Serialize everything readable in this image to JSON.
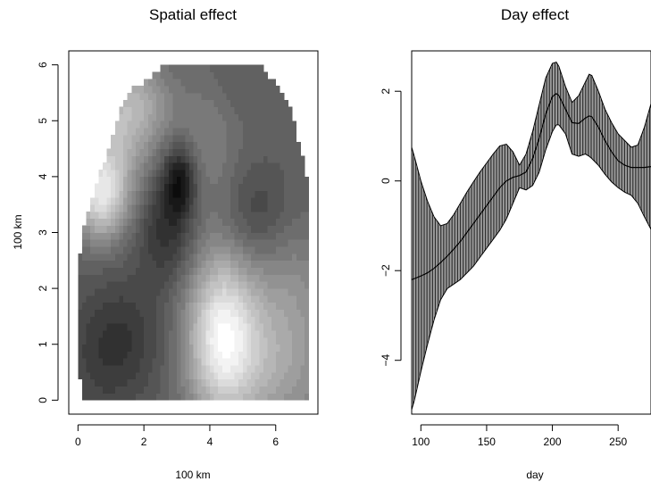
{
  "chart_data": [
    {
      "type": "heatmap",
      "title": "Spatial effect",
      "xlabel": "100 km",
      "ylabel": "100 km",
      "xlim": [
        -0.28,
        7.28
      ],
      "ylim": [
        -0.25,
        6.25
      ],
      "xticks": [
        0,
        2,
        4,
        6
      ],
      "yticks": [
        0,
        1,
        2,
        3,
        4,
        5,
        6
      ],
      "grid": false,
      "colormap": "grayscale",
      "value_range": [
        0,
        1
      ],
      "grid_x0": 0.0,
      "grid_y0": 0.0,
      "cell_size": 0.125,
      "grid_cols": 58,
      "grid_rows": 50,
      "domain_rows": [
        {
          "y": 0.0,
          "x_from": 0.2,
          "x_to": 7.0
        },
        {
          "y": 0.5,
          "x_from": 0.0,
          "x_to": 7.0
        },
        {
          "y": 1.0,
          "x_from": 0.0,
          "x_to": 7.0
        },
        {
          "y": 1.5,
          "x_from": 0.0,
          "x_to": 7.0
        },
        {
          "y": 2.0,
          "x_from": 0.0,
          "x_to": 7.0
        },
        {
          "y": 2.5,
          "x_from": 0.05,
          "x_to": 7.0
        },
        {
          "y": 3.0,
          "x_from": 0.15,
          "x_to": 7.0
        },
        {
          "y": 3.5,
          "x_from": 0.4,
          "x_to": 7.0
        },
        {
          "y": 4.0,
          "x_from": 0.65,
          "x_to": 6.95
        },
        {
          "y": 4.5,
          "x_from": 0.95,
          "x_to": 6.75
        },
        {
          "y": 5.0,
          "x_from": 1.15,
          "x_to": 6.55
        },
        {
          "y": 5.5,
          "x_from": 1.5,
          "x_to": 6.25
        },
        {
          "y": 5.8,
          "x_from": 2.2,
          "x_to": 5.75
        },
        {
          "y": 6.0,
          "x_from": 2.6,
          "x_to": 5.6
        }
      ],
      "field": {
        "base": 0.38,
        "components": [
          {
            "x": 3.1,
            "y": 3.95,
            "sx": 0.35,
            "sy": 0.45,
            "amp": -0.3
          },
          {
            "x": 2.7,
            "y": 3.1,
            "sx": 0.6,
            "sy": 0.7,
            "amp": -0.2
          },
          {
            "x": 1.35,
            "y": 1.1,
            "sx": 0.9,
            "sy": 0.8,
            "amp": -0.16
          },
          {
            "x": 0.4,
            "y": 0.5,
            "sx": 0.8,
            "sy": 0.9,
            "amp": -0.06
          },
          {
            "x": 5.4,
            "y": 3.35,
            "sx": 0.7,
            "sy": 0.6,
            "amp": -0.12
          },
          {
            "x": 4.35,
            "y": 1.2,
            "sx": 0.75,
            "sy": 1.05,
            "amp": 0.5
          },
          {
            "x": 5.9,
            "y": 0.7,
            "sx": 1.3,
            "sy": 1.0,
            "amp": 0.26
          },
          {
            "x": 0.7,
            "y": 3.65,
            "sx": 0.55,
            "sy": 0.55,
            "amp": 0.44
          },
          {
            "x": 1.15,
            "y": 4.85,
            "sx": 0.8,
            "sy": 0.9,
            "amp": 0.28
          },
          {
            "x": 2.0,
            "y": 5.3,
            "sx": 0.7,
            "sy": 0.55,
            "amp": 0.16
          },
          {
            "x": 3.9,
            "y": 4.7,
            "sx": 0.7,
            "sy": 1.0,
            "amp": 0.12
          },
          {
            "x": 4.5,
            "y": 5.7,
            "sx": 0.9,
            "sy": 0.5,
            "amp": -0.04
          },
          {
            "x": 6.5,
            "y": 2.2,
            "sx": 0.8,
            "sy": 0.8,
            "amp": 0.1
          }
        ]
      },
      "quantize_levels": 22
    },
    {
      "type": "line",
      "title": "Day effect",
      "xlabel": "day",
      "ylabel": "",
      "xlim": [
        93,
        275
      ],
      "ylim": [
        -5.2,
        2.9
      ],
      "xticks": [
        100,
        150,
        200,
        250
      ],
      "yticks": [
        -4,
        -2,
        0,
        2
      ],
      "ytick_labels": [
        "−4",
        "−2",
        "0",
        "2"
      ],
      "grid": false,
      "band_style": "vertical-hatch",
      "x": [
        93,
        95,
        100,
        105,
        110,
        115,
        120,
        125,
        130,
        135,
        140,
        145,
        150,
        155,
        160,
        165,
        170,
        175,
        180,
        185,
        190,
        195,
        200,
        203,
        205,
        210,
        215,
        220,
        225,
        228,
        230,
        235,
        240,
        245,
        250,
        255,
        260,
        265,
        270,
        275
      ],
      "series": [
        {
          "mean": [
            -2.2,
            -2.18,
            -2.12,
            -2.05,
            -1.95,
            -1.82,
            -1.68,
            -1.52,
            -1.35,
            -1.15,
            -0.95,
            -0.75,
            -0.55,
            -0.35,
            -0.15,
            0.0,
            0.08,
            0.12,
            0.2,
            0.5,
            0.95,
            1.5,
            1.88,
            1.95,
            1.9,
            1.6,
            1.3,
            1.28,
            1.4,
            1.45,
            1.43,
            1.2,
            0.9,
            0.65,
            0.45,
            0.35,
            0.3,
            0.3,
            0.3,
            0.32
          ],
          "upper": [
            0.75,
            0.55,
            0.0,
            -0.45,
            -0.8,
            -1.0,
            -0.95,
            -0.75,
            -0.5,
            -0.25,
            -0.02,
            0.2,
            0.4,
            0.6,
            0.78,
            0.82,
            0.65,
            0.35,
            0.6,
            1.1,
            1.7,
            2.3,
            2.62,
            2.65,
            2.55,
            2.1,
            1.75,
            1.9,
            2.2,
            2.38,
            2.35,
            2.0,
            1.6,
            1.3,
            1.05,
            0.9,
            0.75,
            0.8,
            1.2,
            1.72
          ],
          "lower": [
            -5.1,
            -4.9,
            -4.25,
            -3.65,
            -3.1,
            -2.65,
            -2.4,
            -2.3,
            -2.2,
            -2.05,
            -1.9,
            -1.7,
            -1.5,
            -1.3,
            -1.1,
            -0.85,
            -0.5,
            -0.15,
            -0.2,
            -0.1,
            0.2,
            0.7,
            1.1,
            1.25,
            1.25,
            1.05,
            0.6,
            0.55,
            0.6,
            0.55,
            0.5,
            0.35,
            0.15,
            -0.02,
            -0.15,
            -0.25,
            -0.32,
            -0.5,
            -0.8,
            -1.08
          ]
        }
      ]
    }
  ]
}
